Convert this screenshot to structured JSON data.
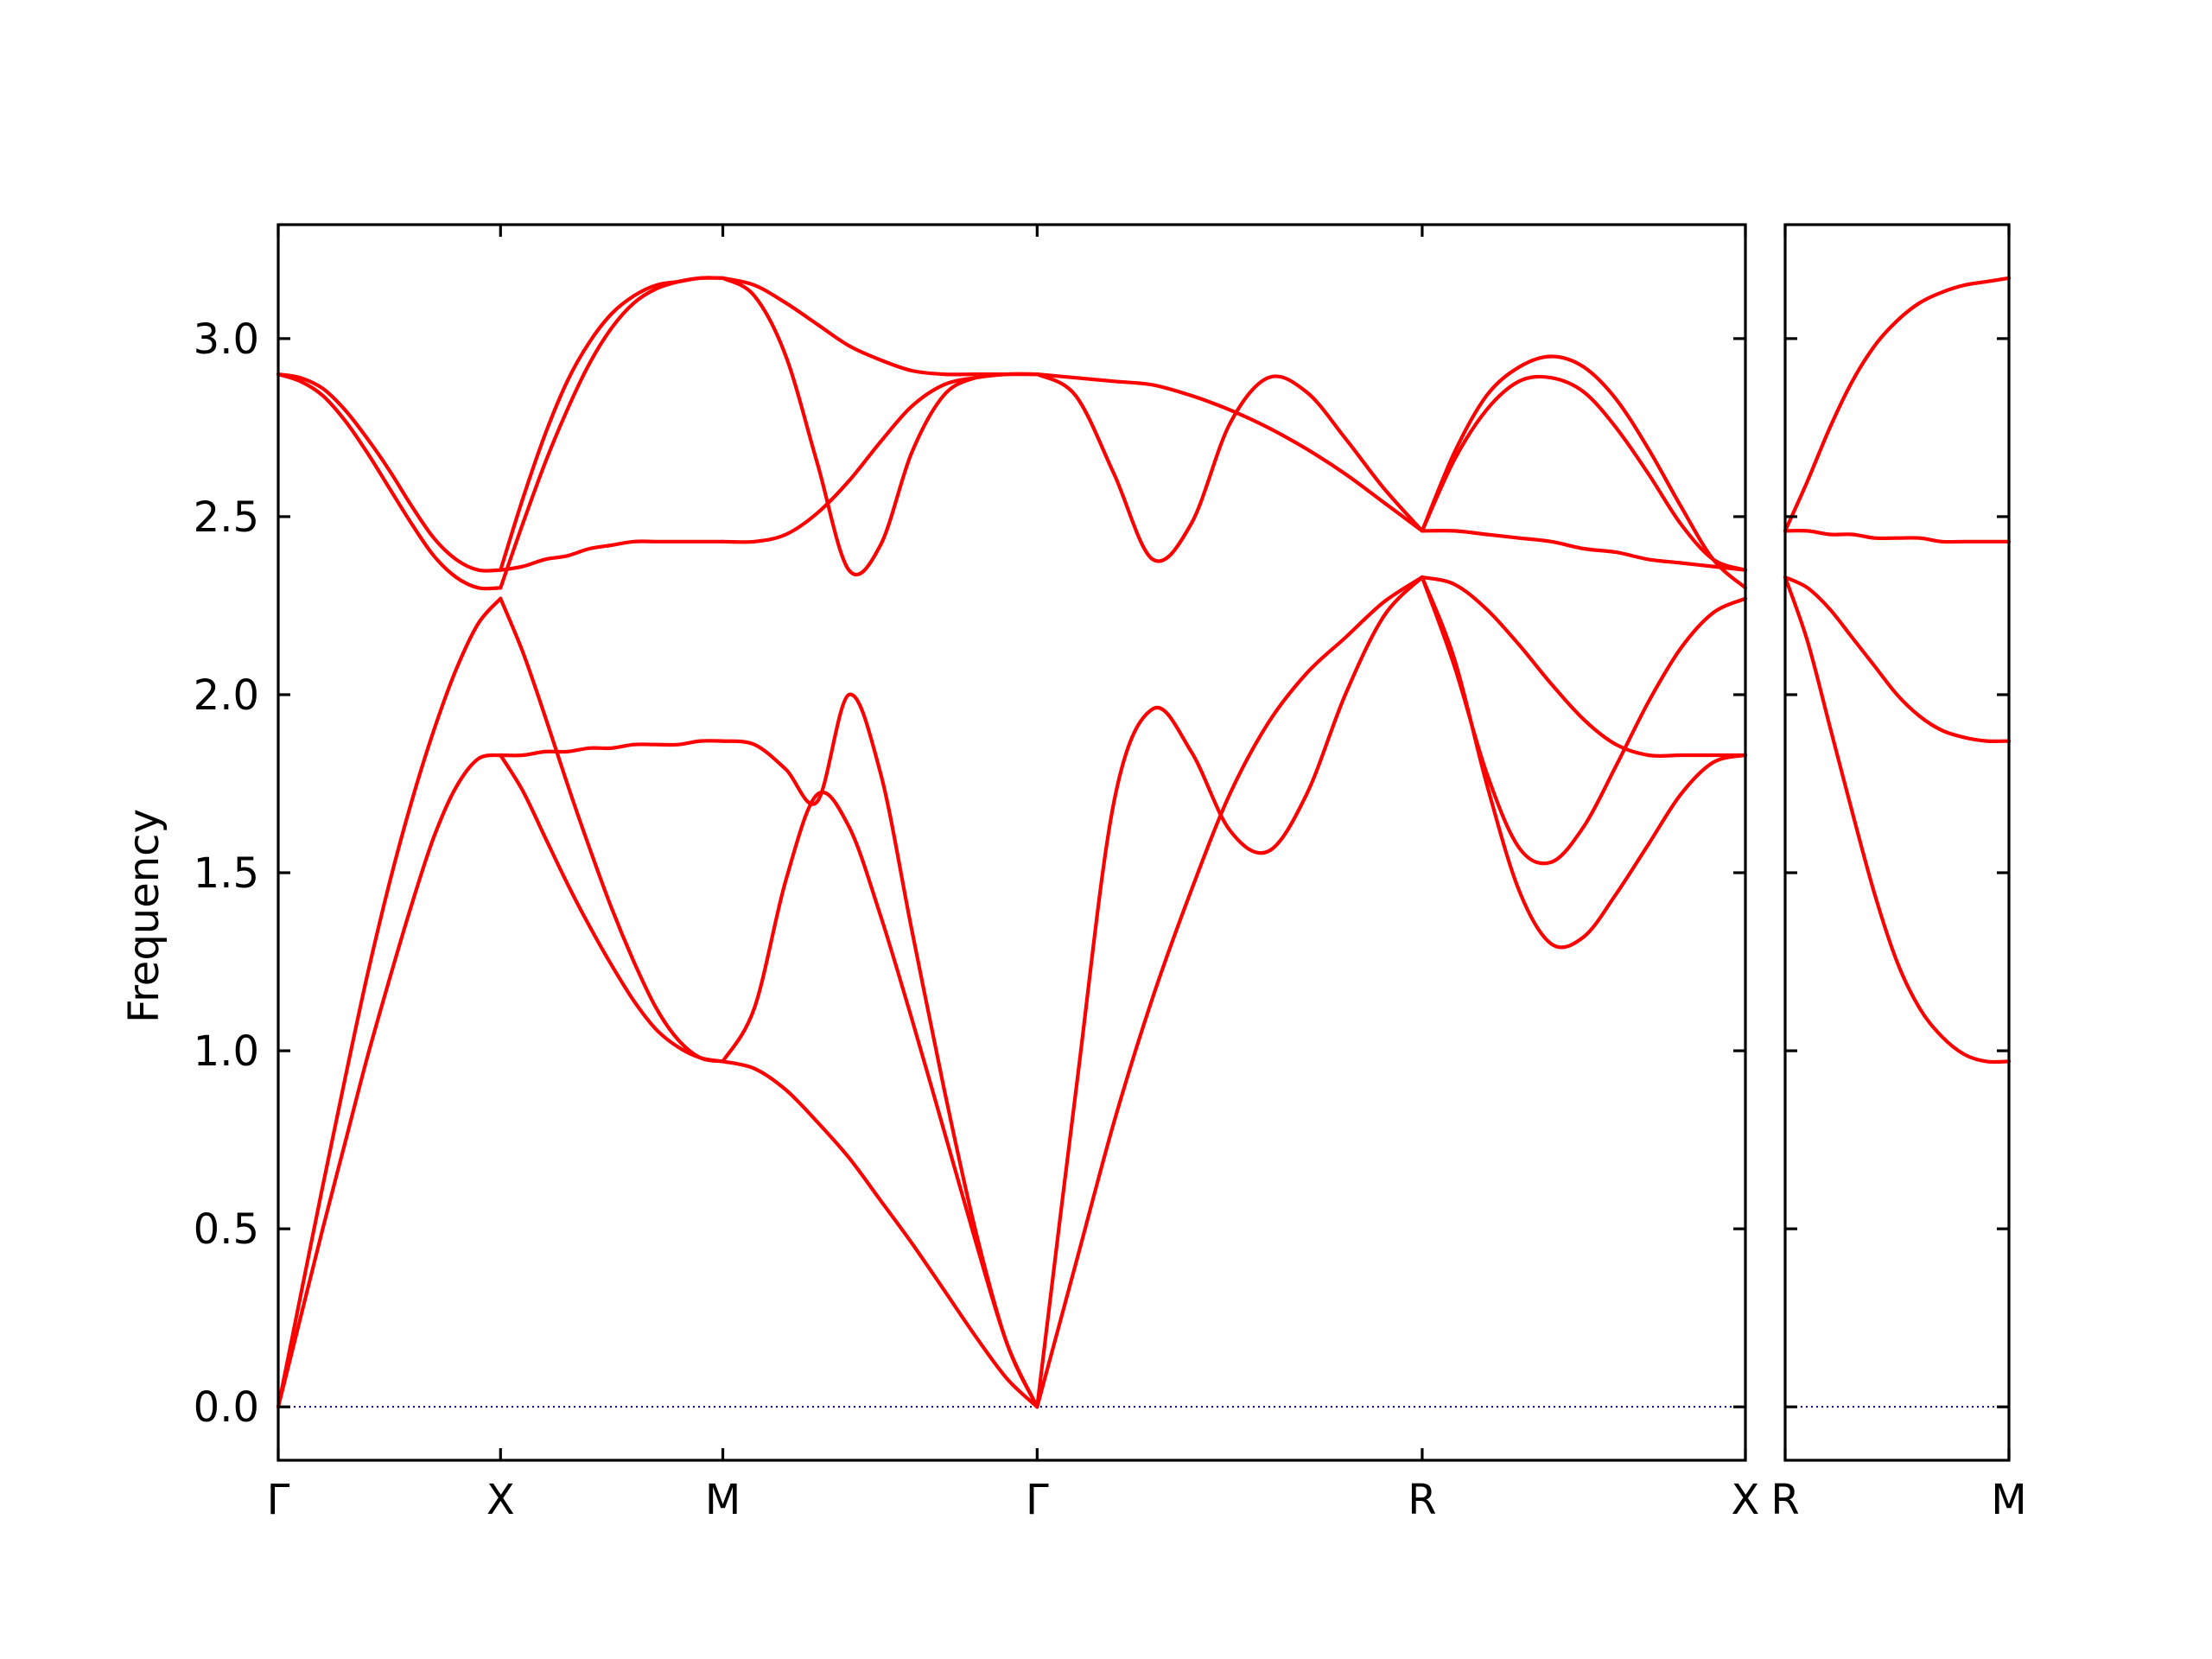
{
  "chart_data": {
    "type": "line",
    "title": "",
    "ylabel": "Frequency",
    "ylim": [
      -0.15,
      3.32
    ],
    "yticks": [
      "0.0",
      "0.5",
      "1.0",
      "1.5",
      "2.0",
      "2.5",
      "3.0"
    ],
    "ytick_values": [
      0.0,
      0.5,
      1.0,
      1.5,
      2.0,
      2.5,
      3.0
    ],
    "band_color": "#ff0000",
    "zero_line_color": "#00008b",
    "grid": false,
    "panels": [
      {
        "xlim": [
          0,
          6.6
        ],
        "xticks": [
          {
            "label": "Γ",
            "x": 0
          },
          {
            "label": "X",
            "x": 1
          },
          {
            "label": "M",
            "x": 2
          },
          {
            "label": "Γ",
            "x": 3.414
          },
          {
            "label": "R",
            "x": 5.146
          },
          {
            "label": "X",
            "x": 6.6
          }
        ],
        "series": [
          {
            "x": [
              0,
              0.1,
              0.2,
              0.3,
              0.4,
              0.5,
              0.6,
              0.7,
              0.8,
              0.9,
              1.0
            ],
            "values": [
              0,
              0.25,
              0.5,
              0.74,
              0.98,
              1.2,
              1.41,
              1.6,
              1.74,
              1.82,
              1.83
            ]
          },
          {
            "x": [
              0,
              0.1,
              0.2,
              0.3,
              0.4,
              0.5,
              0.6,
              0.7,
              0.8,
              0.9,
              1.0
            ],
            "values": [
              0,
              0.31,
              0.62,
              0.92,
              1.21,
              1.47,
              1.7,
              1.9,
              2.07,
              2.2,
              2.27
            ]
          },
          {
            "x": [
              0,
              0.1,
              0.2,
              0.3,
              0.4,
              0.5,
              0.6,
              0.7,
              0.8,
              0.9,
              1.0
            ],
            "values": [
              2.9,
              2.88,
              2.84,
              2.77,
              2.68,
              2.58,
              2.48,
              2.39,
              2.33,
              2.3,
              2.3
            ]
          },
          {
            "x": [
              0,
              0.1,
              0.2,
              0.3,
              0.4,
              0.5,
              0.6,
              0.7,
              0.8,
              0.9,
              1.0
            ],
            "values": [
              2.9,
              2.89,
              2.86,
              2.8,
              2.72,
              2.63,
              2.53,
              2.44,
              2.38,
              2.35,
              2.35
            ]
          },
          {
            "x": [
              1.0,
              1.1,
              1.2,
              1.3,
              1.4,
              1.5,
              1.6,
              1.7,
              1.8,
              1.9,
              2.0
            ],
            "values": [
              1.83,
              1.73,
              1.6,
              1.47,
              1.35,
              1.24,
              1.14,
              1.06,
              1.01,
              0.98,
              0.97
            ]
          },
          {
            "x": [
              1.0,
              1.1,
              1.2,
              1.3,
              1.4,
              1.5,
              1.6,
              1.7,
              1.8,
              1.9,
              2.0
            ],
            "values": [
              2.27,
              2.12,
              1.94,
              1.75,
              1.57,
              1.4,
              1.25,
              1.12,
              1.03,
              0.98,
              0.97
            ]
          },
          {
            "x": [
              1.0,
              1.1,
              1.2,
              1.3,
              1.4,
              1.5,
              1.6,
              1.7,
              1.8,
              1.9,
              2.0
            ],
            "values": [
              1.83,
              1.83,
              1.84,
              1.84,
              1.85,
              1.85,
              1.86,
              1.86,
              1.86,
              1.87,
              1.87
            ]
          },
          {
            "x": [
              1.0,
              1.1,
              1.2,
              1.3,
              1.4,
              1.5,
              1.6,
              1.7,
              1.8,
              1.9,
              2.0
            ],
            "values": [
              2.35,
              2.36,
              2.38,
              2.39,
              2.41,
              2.42,
              2.43,
              2.43,
              2.43,
              2.43,
              2.43
            ]
          },
          {
            "x": [
              1.0,
              1.1,
              1.2,
              1.3,
              1.4,
              1.5,
              1.6,
              1.7,
              1.8,
              1.9,
              2.0
            ],
            "values": [
              2.3,
              2.48,
              2.65,
              2.8,
              2.93,
              3.03,
              3.1,
              3.14,
              3.16,
              3.17,
              3.17
            ]
          },
          {
            "x": [
              1.0,
              1.1,
              1.2,
              1.3,
              1.4,
              1.5,
              1.6,
              1.7,
              1.8,
              1.9,
              2.0
            ],
            "values": [
              2.35,
              2.55,
              2.73,
              2.88,
              2.99,
              3.07,
              3.12,
              3.15,
              3.16,
              3.17,
              3.17
            ]
          },
          {
            "x": [
              2.0,
              2.142,
              2.284,
              2.425,
              2.567,
              2.709,
              2.85,
              2.993,
              3.135,
              3.277,
              3.414
            ],
            "values": [
              0.97,
              0.95,
              0.89,
              0.8,
              0.7,
              0.58,
              0.46,
              0.33,
              0.2,
              0.08,
              0
            ]
          },
          {
            "x": [
              2.0,
              2.142,
              2.284,
              2.425,
              2.567,
              2.709,
              2.85,
              2.993,
              3.135,
              3.277,
              3.414
            ],
            "values": [
              0.97,
              1.12,
              1.48,
              1.72,
              1.63,
              1.38,
              1.09,
              0.78,
              0.47,
              0.18,
              0
            ]
          },
          {
            "x": [
              2.0,
              2.142,
              2.284,
              2.425,
              2.567,
              2.709,
              2.85,
              2.993,
              3.135,
              3.277,
              3.414
            ],
            "values": [
              1.87,
              1.86,
              1.79,
              1.7,
              2.0,
              1.78,
              1.34,
              0.9,
              0.5,
              0.18,
              0
            ]
          },
          {
            "x": [
              2.0,
              2.142,
              2.284,
              2.425,
              2.567,
              2.709,
              2.85,
              2.993,
              3.135,
              3.277,
              3.414
            ],
            "values": [
              2.43,
              2.43,
              2.45,
              2.51,
              2.6,
              2.71,
              2.81,
              2.87,
              2.89,
              2.9,
              2.9
            ]
          },
          {
            "x": [
              2.0,
              2.142,
              2.284,
              2.425,
              2.567,
              2.709,
              2.85,
              2.993,
              3.135,
              3.277,
              3.414
            ],
            "values": [
              3.17,
              3.15,
              3.1,
              3.04,
              2.98,
              2.94,
              2.91,
              2.9,
              2.9,
              2.9,
              2.9
            ]
          },
          {
            "x": [
              2.0,
              2.142,
              2.284,
              2.425,
              2.567,
              2.709,
              2.85,
              2.993,
              3.135,
              3.277,
              3.414
            ],
            "values": [
              3.17,
              3.12,
              2.95,
              2.65,
              2.35,
              2.42,
              2.68,
              2.84,
              2.89,
              2.9,
              2.9
            ]
          },
          {
            "x": [
              3.414,
              3.587,
              3.76,
              3.934,
              4.107,
              4.28,
              4.453,
              4.626,
              4.8,
              4.973,
              5.146
            ],
            "values": [
              0,
              0.4,
              0.8,
              1.15,
              1.45,
              1.72,
              1.92,
              2.06,
              2.16,
              2.26,
              2.33
            ]
          },
          {
            "x": [
              3.414,
              3.587,
              3.76,
              3.934,
              4.107,
              4.28,
              4.453,
              4.626,
              4.8,
              4.973,
              5.146
            ],
            "values": [
              0,
              0.88,
              1.7,
              1.96,
              1.84,
              1.62,
              1.56,
              1.72,
              2.0,
              2.22,
              2.33
            ]
          },
          {
            "x": [
              3.414,
              3.587,
              3.76,
              3.934,
              4.107,
              4.28,
              4.453,
              4.626,
              4.8,
              4.973,
              5.146
            ],
            "values": [
              2.9,
              2.89,
              2.88,
              2.87,
              2.84,
              2.8,
              2.75,
              2.69,
              2.62,
              2.54,
              2.46
            ]
          },
          {
            "x": [
              3.414,
              3.587,
              3.76,
              3.934,
              4.107,
              4.28,
              4.453,
              4.626,
              4.8,
              4.973,
              5.146
            ],
            "values": [
              2.9,
              2.84,
              2.62,
              2.38,
              2.48,
              2.76,
              2.89,
              2.85,
              2.72,
              2.58,
              2.46
            ]
          },
          {
            "x": [
              5.146,
              5.291,
              5.436,
              5.582,
              5.727,
              5.873,
              6.018,
              6.164,
              6.309,
              6.455,
              6.6
            ],
            "values": [
              2.33,
              2.1,
              1.75,
              1.45,
              1.3,
              1.32,
              1.44,
              1.58,
              1.72,
              1.81,
              1.83
            ]
          },
          {
            "x": [
              5.146,
              5.291,
              5.436,
              5.582,
              5.727,
              5.873,
              6.018,
              6.164,
              6.309,
              6.455,
              6.6
            ],
            "values": [
              2.33,
              2.31,
              2.24,
              2.14,
              2.03,
              1.93,
              1.86,
              1.83,
              1.83,
              1.83,
              1.83
            ]
          },
          {
            "x": [
              5.146,
              5.291,
              5.436,
              5.582,
              5.727,
              5.873,
              6.018,
              6.164,
              6.309,
              6.455,
              6.6
            ],
            "values": [
              2.33,
              2.08,
              1.78,
              1.57,
              1.53,
              1.63,
              1.8,
              1.98,
              2.13,
              2.23,
              2.27
            ]
          },
          {
            "x": [
              5.146,
              5.291,
              5.436,
              5.582,
              5.727,
              5.873,
              6.018,
              6.164,
              6.309,
              6.455,
              6.6
            ],
            "values": [
              2.46,
              2.46,
              2.45,
              2.44,
              2.43,
              2.41,
              2.4,
              2.38,
              2.37,
              2.36,
              2.35
            ]
          },
          {
            "x": [
              5.146,
              5.291,
              5.436,
              5.582,
              5.727,
              5.873,
              6.018,
              6.164,
              6.309,
              6.455,
              6.6
            ],
            "values": [
              2.46,
              2.68,
              2.84,
              2.92,
              2.95,
              2.92,
              2.83,
              2.69,
              2.53,
              2.38,
              2.3
            ]
          },
          {
            "x": [
              5.146,
              5.291,
              5.436,
              5.582,
              5.727,
              5.873,
              6.018,
              6.164,
              6.309,
              6.455,
              6.6
            ],
            "values": [
              2.46,
              2.66,
              2.8,
              2.88,
              2.89,
              2.85,
              2.75,
              2.62,
              2.48,
              2.38,
              2.35
            ]
          }
        ]
      },
      {
        "xlim": [
          0,
          1
        ],
        "xticks": [
          {
            "label": "R",
            "x": 0
          },
          {
            "label": "M",
            "x": 1
          }
        ],
        "series": [
          {
            "x": [
              0,
              0.1,
              0.2,
              0.3,
              0.4,
              0.5,
              0.6,
              0.7,
              0.8,
              0.9,
              1.0
            ],
            "values": [
              2.33,
              2.15,
              1.91,
              1.67,
              1.44,
              1.25,
              1.12,
              1.04,
              0.99,
              0.97,
              0.97
            ]
          },
          {
            "x": [
              0,
              0.1,
              0.2,
              0.3,
              0.4,
              0.5,
              0.6,
              0.7,
              0.8,
              0.9,
              1.0
            ],
            "values": [
              2.33,
              2.3,
              2.24,
              2.16,
              2.08,
              2.0,
              1.94,
              1.9,
              1.88,
              1.87,
              1.87
            ]
          },
          {
            "x": [
              0,
              0.1,
              0.2,
              0.3,
              0.4,
              0.5,
              0.6,
              0.7,
              0.8,
              0.9,
              1.0
            ],
            "values": [
              2.46,
              2.46,
              2.45,
              2.45,
              2.44,
              2.44,
              2.44,
              2.43,
              2.43,
              2.43,
              2.43
            ]
          },
          {
            "x": [
              0,
              0.1,
              0.2,
              0.3,
              0.4,
              0.5,
              0.6,
              0.7,
              0.8,
              0.9,
              1.0
            ],
            "values": [
              2.46,
              2.6,
              2.75,
              2.88,
              2.98,
              3.05,
              3.1,
              3.13,
              3.15,
              3.16,
              3.17
            ]
          }
        ]
      }
    ]
  }
}
